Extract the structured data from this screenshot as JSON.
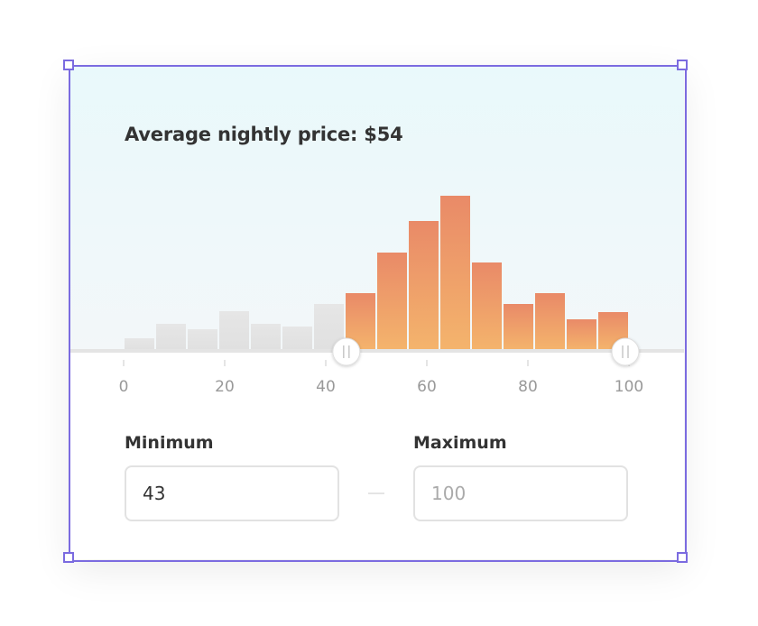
{
  "title": "Average nightly price: $54",
  "chart_data": {
    "type": "bar",
    "bin_edges": [
      0,
      6.25,
      12.5,
      18.75,
      25,
      31.25,
      37.5,
      43.75,
      50,
      56.25,
      62.5,
      68.75,
      75,
      81.25,
      87.5,
      93.75,
      100
    ],
    "values": [
      13,
      29,
      23,
      43,
      29,
      26,
      51,
      63,
      108,
      143,
      171,
      97,
      51,
      63,
      34,
      42
    ],
    "xlim": [
      0,
      100
    ],
    "ticks": [
      "0",
      "20",
      "40",
      "60",
      "80",
      "100"
    ],
    "selected_range": [
      43,
      100
    ],
    "colors": {
      "selected_top": "#e98a68",
      "selected_bottom": "#f4b46c",
      "unselected": "#e3e3e3",
      "selection_border": "#7b6be0"
    }
  },
  "minimum": {
    "label": "Minimum",
    "value": "43"
  },
  "maximum": {
    "label": "Maximum",
    "placeholder": "100"
  }
}
